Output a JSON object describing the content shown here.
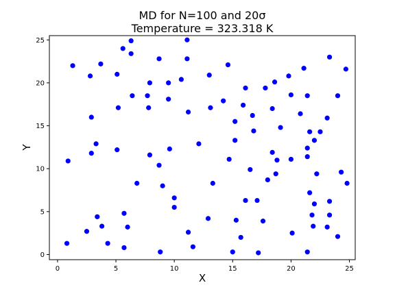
{
  "chart_data": {
    "type": "scatter",
    "title_line1": "MD for N=100 and 20σ",
    "title_line2": "Temperature = 323.318 K",
    "xlabel": "X",
    "ylabel": "Y",
    "xlim": [
      -0.7,
      25.5
    ],
    "ylim": [
      -0.6,
      25.5
    ],
    "xticks": [
      0,
      5,
      10,
      15,
      20,
      25
    ],
    "yticks": [
      0,
      5,
      10,
      15,
      20,
      25
    ],
    "grid": false,
    "marker_color": "#0000ff",
    "points": [
      [
        1.3,
        22.0
      ],
      [
        0.9,
        10.9
      ],
      [
        0.8,
        1.3
      ],
      [
        2.8,
        20.8
      ],
      [
        2.9,
        16.0
      ],
      [
        2.9,
        11.8
      ],
      [
        3.3,
        12.9
      ],
      [
        3.4,
        4.4
      ],
      [
        3.7,
        22.2
      ],
      [
        3.8,
        3.3
      ],
      [
        2.5,
        2.7
      ],
      [
        4.3,
        1.3
      ],
      [
        5.1,
        21.0
      ],
      [
        5.2,
        17.1
      ],
      [
        5.1,
        12.2
      ],
      [
        5.6,
        24.0
      ],
      [
        5.7,
        4.8
      ],
      [
        5.7,
        0.8
      ],
      [
        6.0,
        3.2
      ],
      [
        6.3,
        24.9
      ],
      [
        6.3,
        23.4
      ],
      [
        6.4,
        18.5
      ],
      [
        6.8,
        8.3
      ],
      [
        7.7,
        18.5
      ],
      [
        7.8,
        17.1
      ],
      [
        7.9,
        20.0
      ],
      [
        7.9,
        11.6
      ],
      [
        8.7,
        22.8
      ],
      [
        8.7,
        10.4
      ],
      [
        8.8,
        0.3
      ],
      [
        9.0,
        8.0
      ],
      [
        9.5,
        20.0
      ],
      [
        9.5,
        18.1
      ],
      [
        9.6,
        12.3
      ],
      [
        10.0,
        6.6
      ],
      [
        10.0,
        5.5
      ],
      [
        10.6,
        20.4
      ],
      [
        11.1,
        25.0
      ],
      [
        11.1,
        22.8
      ],
      [
        11.2,
        16.6
      ],
      [
        11.2,
        2.6
      ],
      [
        11.6,
        0.9
      ],
      [
        12.1,
        12.9
      ],
      [
        12.9,
        4.2
      ],
      [
        13.0,
        20.9
      ],
      [
        13.1,
        17.1
      ],
      [
        13.3,
        8.3
      ],
      [
        14.2,
        17.9
      ],
      [
        14.6,
        22.1
      ],
      [
        14.7,
        11.1
      ],
      [
        15.0,
        0.3
      ],
      [
        15.2,
        15.5
      ],
      [
        15.2,
        13.3
      ],
      [
        15.3,
        4.0
      ],
      [
        15.7,
        2.0
      ],
      [
        15.9,
        17.4
      ],
      [
        16.1,
        19.4
      ],
      [
        16.1,
        6.3
      ],
      [
        16.5,
        9.9
      ],
      [
        16.7,
        16.2
      ],
      [
        16.8,
        14.4
      ],
      [
        17.1,
        6.3
      ],
      [
        17.2,
        0.2
      ],
      [
        17.6,
        3.9
      ],
      [
        17.8,
        19.4
      ],
      [
        18.0,
        8.7
      ],
      [
        18.4,
        17.0
      ],
      [
        18.4,
        11.9
      ],
      [
        18.6,
        20.1
      ],
      [
        18.7,
        9.4
      ],
      [
        18.8,
        11.0
      ],
      [
        19.1,
        14.8
      ],
      [
        19.8,
        20.8
      ],
      [
        20.0,
        18.6
      ],
      [
        20.0,
        11.1
      ],
      [
        20.1,
        2.5
      ],
      [
        20.8,
        16.4
      ],
      [
        21.1,
        21.7
      ],
      [
        21.4,
        18.5
      ],
      [
        21.4,
        12.4
      ],
      [
        21.4,
        11.4
      ],
      [
        21.4,
        0.3
      ],
      [
        21.6,
        14.3
      ],
      [
        21.6,
        7.2
      ],
      [
        21.8,
        4.6
      ],
      [
        21.9,
        3.3
      ],
      [
        22.0,
        13.3
      ],
      [
        22.0,
        5.9
      ],
      [
        22.2,
        9.4
      ],
      [
        22.5,
        14.3
      ],
      [
        23.1,
        15.9
      ],
      [
        23.1,
        3.2
      ],
      [
        23.3,
        23.0
      ],
      [
        23.3,
        6.2
      ],
      [
        23.3,
        4.6
      ],
      [
        24.0,
        18.5
      ],
      [
        24.0,
        2.1
      ],
      [
        24.3,
        9.6
      ],
      [
        24.7,
        21.6
      ],
      [
        24.8,
        8.3
      ]
    ]
  }
}
